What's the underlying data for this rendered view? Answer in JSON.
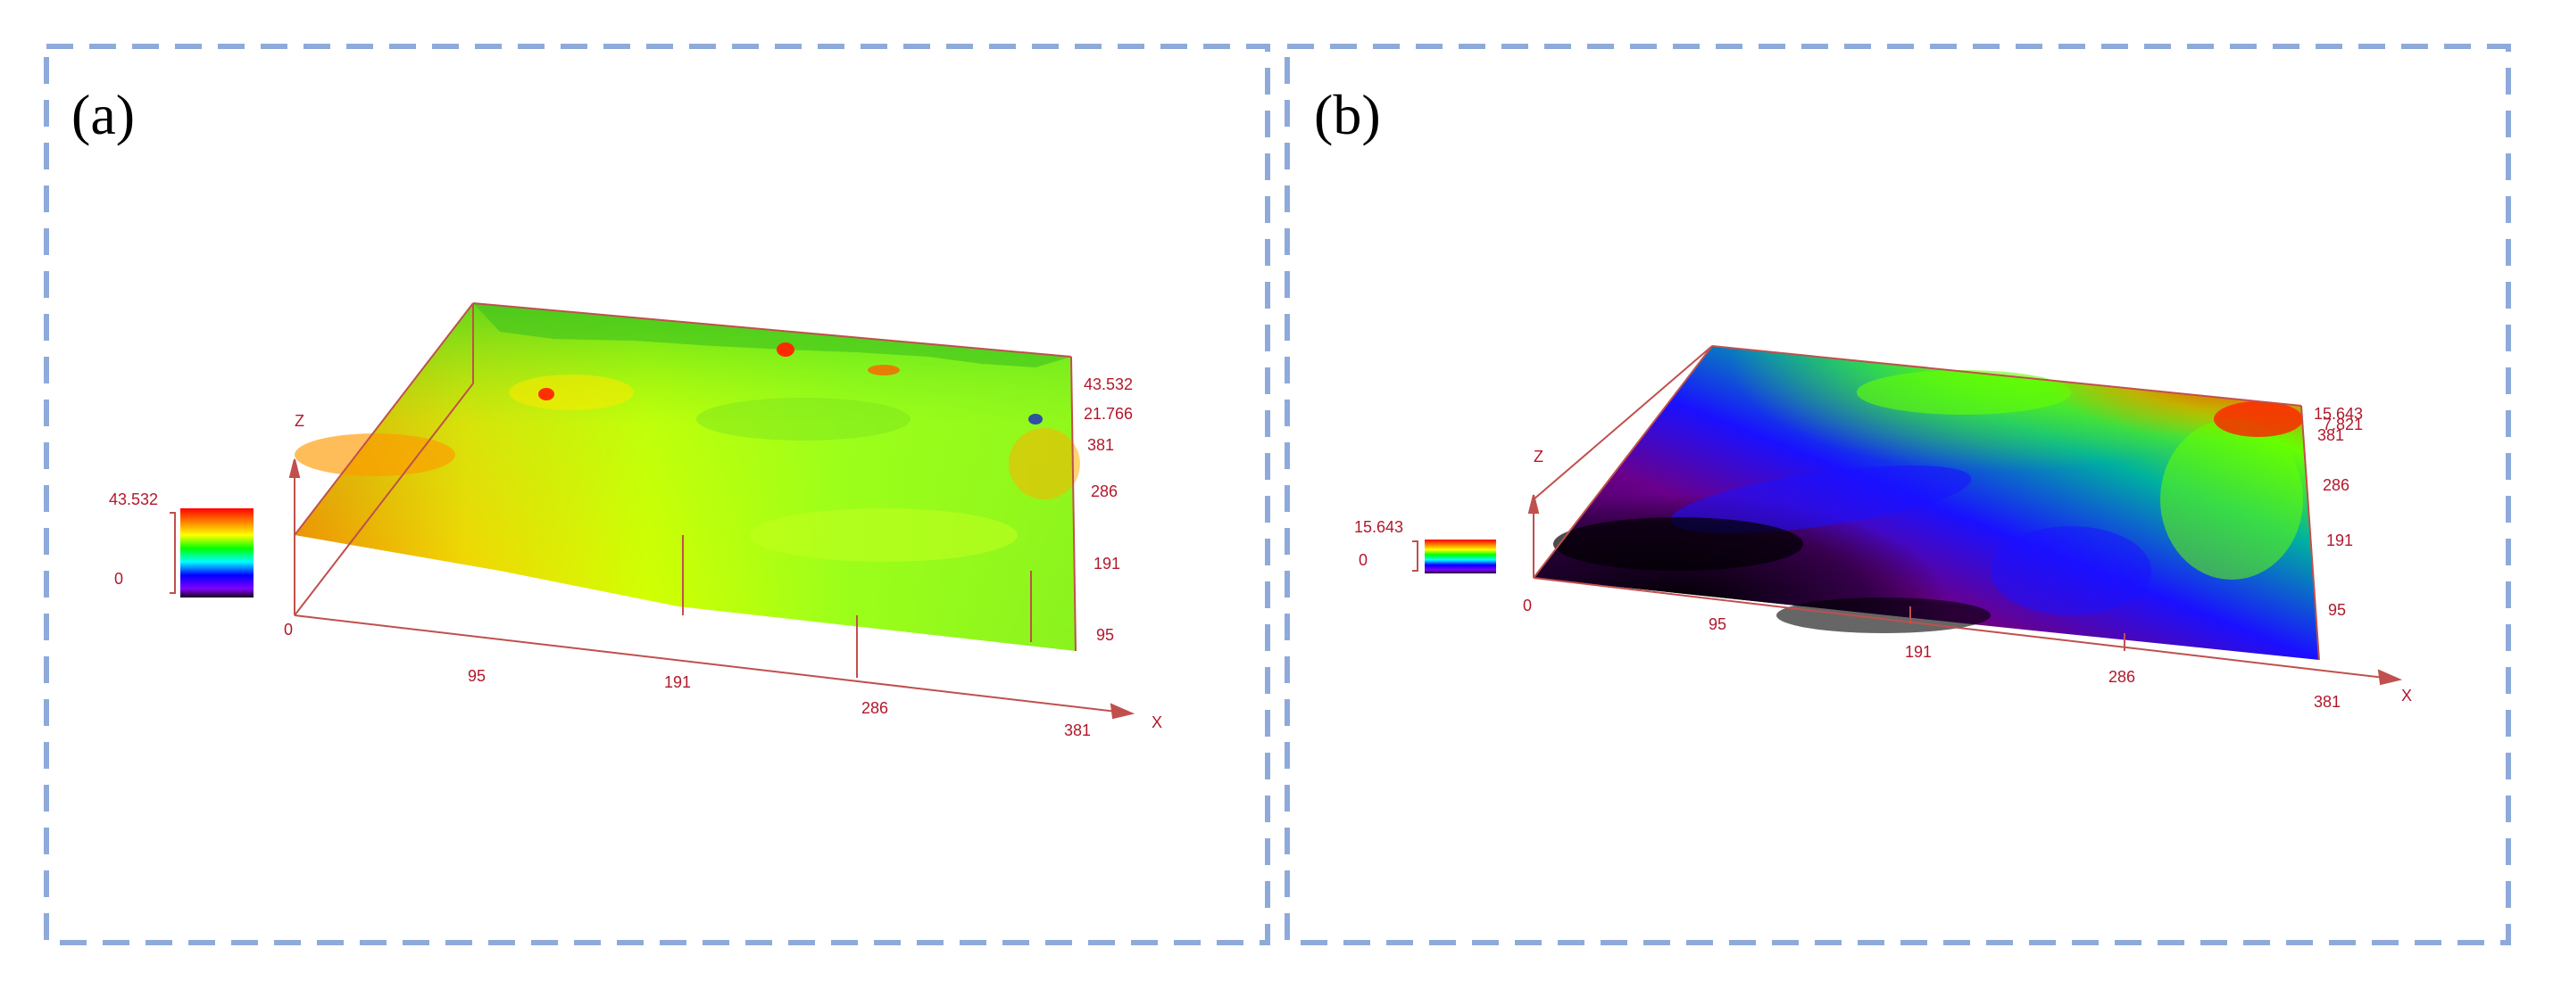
{
  "panels": [
    {
      "id": "a",
      "label": "(a)",
      "legend": {
        "max": "43.532",
        "min": "0"
      },
      "x_ticks": [
        "0",
        "95",
        "191",
        "286",
        "381"
      ],
      "y_ticks": [
        "95",
        "191",
        "286",
        "381"
      ],
      "z_ticks": [
        "43.532",
        "21.766"
      ],
      "axis_x_label": "X",
      "axis_z_label": "Z",
      "surface_colors": [
        "#ff7a00",
        "#ffd000",
        "#d8ff00",
        "#9cff1a",
        "#5bea1e",
        "#b4ff2e"
      ]
    },
    {
      "id": "b",
      "label": "(b)",
      "legend": {
        "max": "15.643",
        "min": "0"
      },
      "x_ticks": [
        "0",
        "95",
        "191",
        "286",
        "381"
      ],
      "y_ticks": [
        "95",
        "191",
        "286",
        "381"
      ],
      "z_ticks": [
        "15.643",
        "7.821"
      ],
      "axis_x_label": "X",
      "axis_z_label": "Z",
      "surface_colors": [
        "#000000",
        "#5a007a",
        "#1a10ff",
        "#00a0a0",
        "#66ff00",
        "#ff2000"
      ]
    }
  ],
  "colors": {
    "axis": "#c0504d",
    "frame": "#8eaadb",
    "label": "#b2182b"
  }
}
